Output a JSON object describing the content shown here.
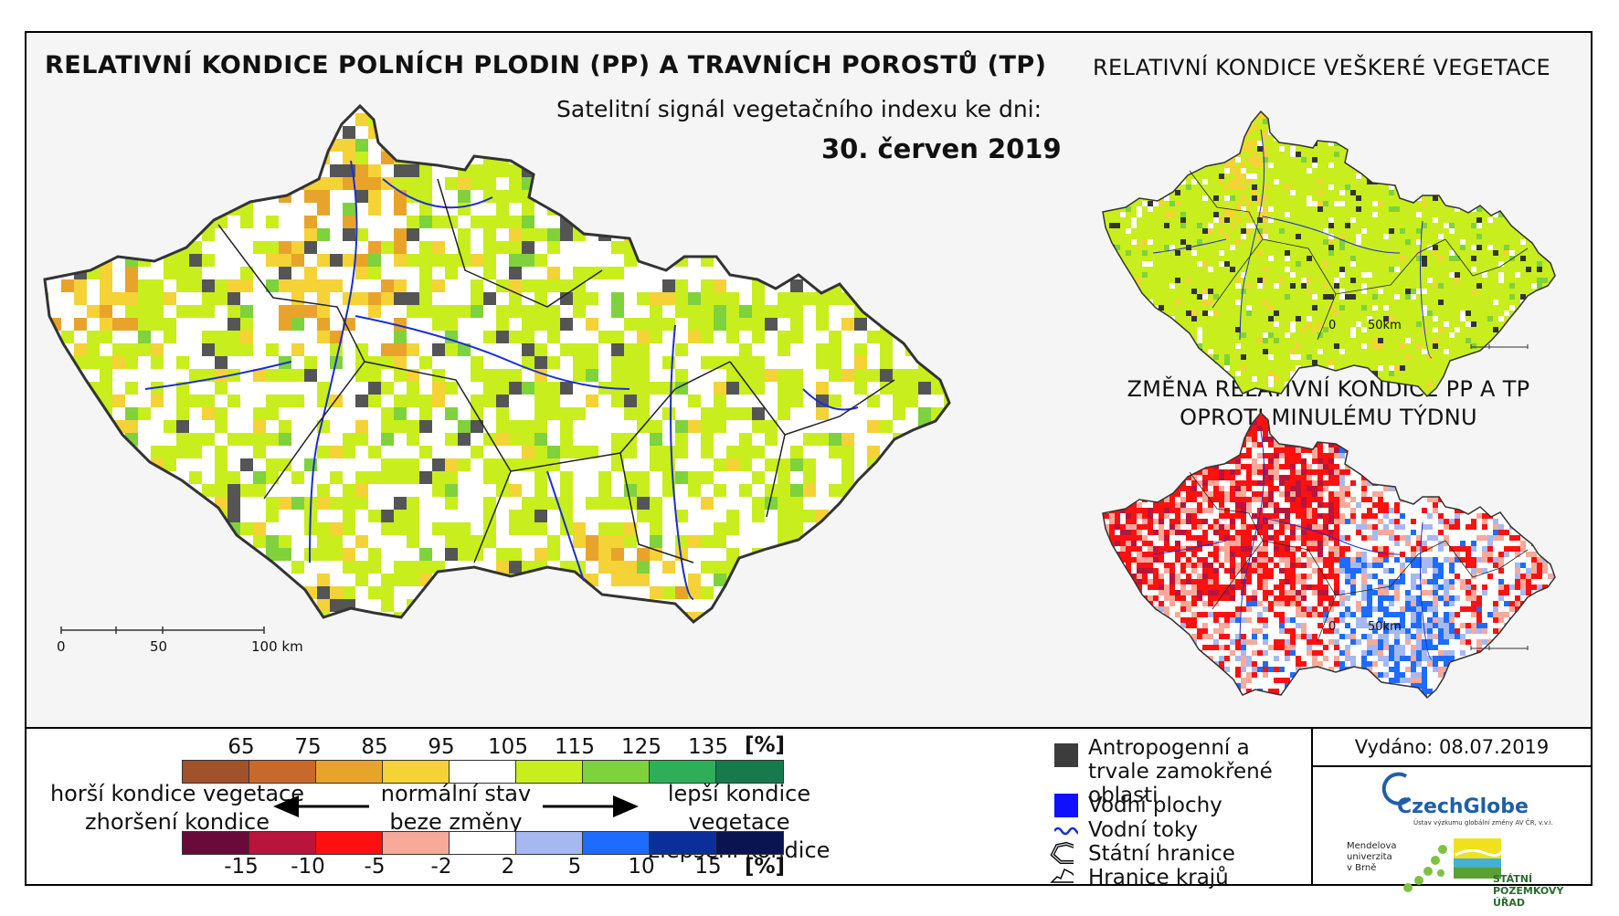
{
  "titles": {
    "main": "RELATIVNÍ KONDICE POLNÍCH PLODIN (PP) A TRAVNÍCH POROSTŮ (TP)",
    "subtitle": "Satelitní signál vegetačního indexu ke dni:",
    "date": "30. červen 2019",
    "right_top": "RELATIVNÍ KONDICE VEŠKERÉ VEGETACE",
    "right_bottom_line1": "ZMĚNA RELATIVNÍ KONDICE PP A TP",
    "right_bottom_line2": "OPROTI MINULÉMU TÝDNU"
  },
  "scalebars": {
    "main": {
      "labels": [
        "0",
        "50",
        "100 km"
      ]
    },
    "small_top": {
      "labels": [
        "0",
        "50km"
      ]
    },
    "small_bottom": {
      "labels": [
        "0",
        "50km"
      ]
    }
  },
  "legend": {
    "condition_ticks": [
      "65",
      "75",
      "85",
      "95",
      "105",
      "115",
      "125",
      "135"
    ],
    "condition_unit": "[%]",
    "condition_colors": [
      "#a0522d",
      "#c8692c",
      "#e8a42a",
      "#f5d235",
      "#ffffff",
      "#c8ee1e",
      "#7ed23c",
      "#2fae5a",
      "#167a4c"
    ],
    "change_ticks": [
      "-15",
      "-10",
      "-5",
      "-2",
      "2",
      "5",
      "10",
      "15"
    ],
    "change_unit": "[%]",
    "change_colors": [
      "#6a0a3a",
      "#b8143c",
      "#ff1010",
      "#f9a99a",
      "#ffffff",
      "#a6b8f0",
      "#1e6cff",
      "#0a2f9a",
      "#0a1450"
    ],
    "worse_line1": "horší kondice vegetace",
    "worse_line2": "zhoršení kondice",
    "normal_line1": "normální stav",
    "normal_line2": "beze změny",
    "better_line1": "lepší kondice vegetace",
    "better_line2": "zlepšení kondice"
  },
  "map_legend": {
    "items": [
      {
        "label": "Antropogenní a trvale zamokřené oblasti",
        "color": "#3c3c3c"
      },
      {
        "label": "Vodní plochy",
        "color": "#1010ff"
      },
      {
        "label": "Vodní toky",
        "color": "#1a2fd0"
      },
      {
        "label": "Státní hranice",
        "color": "#000000"
      },
      {
        "label": "Hranice krajů",
        "color": "#000000"
      }
    ]
  },
  "issued": "Vydáno: 08.07.2019",
  "logos": {
    "czechglobe": "CzechGlobe",
    "czechglobe_sub": "Ústav výzkumu globální změny AV ČR, v.v.i.",
    "mendel_line1": "Mendelova",
    "mendel_line2": "univerzita",
    "mendel_line3": "v Brně",
    "spu_line1": "STÁTNÍ",
    "spu_line2": "POZEMKOVÝ ÚŘAD"
  }
}
